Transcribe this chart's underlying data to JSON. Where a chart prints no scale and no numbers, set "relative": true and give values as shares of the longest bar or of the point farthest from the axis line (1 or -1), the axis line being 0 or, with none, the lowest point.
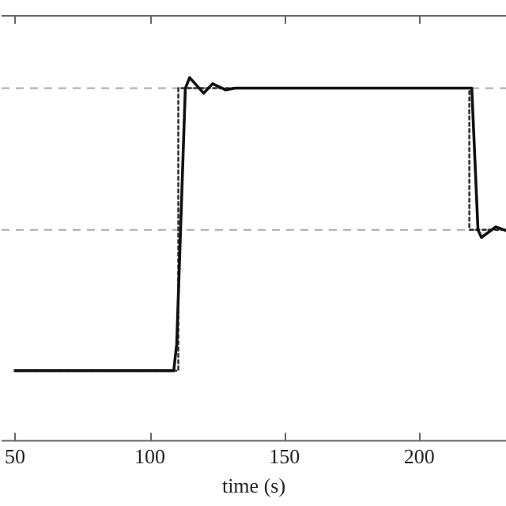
{
  "chart_data": {
    "type": "line",
    "relative": true,
    "xlabel": "time (s)",
    "xlim": [
      45,
      232.2
    ],
    "xticks": [
      50,
      100,
      150,
      200
    ],
    "tick_labels": "x",
    "grid": false,
    "legend": false,
    "marker": "none",
    "series": [
      {
        "color": "#111111",
        "line_style": "solid",
        "x": [
          50,
          108.9,
          110,
          113.2,
          114.8,
          120,
          123.3,
          128.1,
          131.8,
          219.5,
          221.8,
          223.1,
          228.4,
          232.2
        ],
        "values": [
          0.193,
          0.193,
          0.266,
          0.97,
          1,
          0.957,
          0.983,
          0.966,
          0.971,
          0.971,
          0.581,
          0.56,
          0.589,
          0.579
        ]
      },
      {
        "color": "#333333",
        "line_style": "dotted",
        "x": [
          50,
          110.6,
          110.6,
          218.6,
          218.6,
          232.2
        ],
        "values": [
          0.193,
          0.193,
          0.971,
          0.971,
          0.581,
          0.581
        ]
      }
    ],
    "ref_lines": [
      {
        "axis": "y",
        "value": 0.971,
        "color": "#aaaaaa",
        "line_style": "dashed"
      },
      {
        "axis": "y",
        "value": 0.581,
        "color": "#aaaaaa",
        "line_style": "dashed"
      }
    ]
  }
}
